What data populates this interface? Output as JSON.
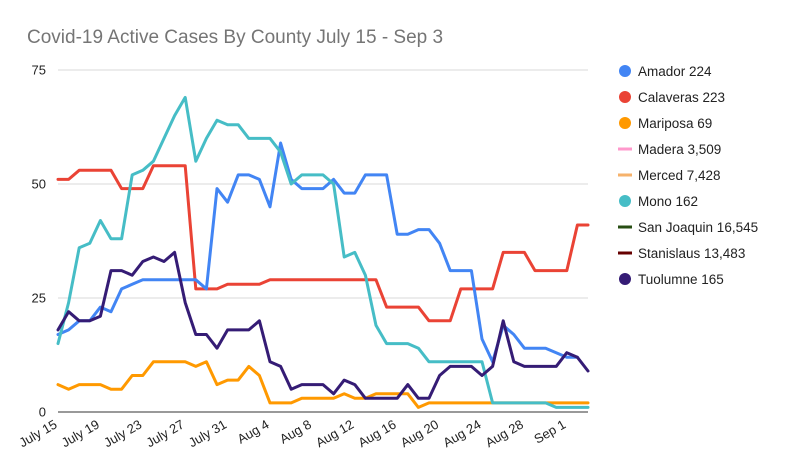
{
  "chart_data": {
    "type": "line",
    "title": "Covid-19 Active Cases By County July 15 - Sep 3",
    "xlabel": "",
    "ylabel": "",
    "ylim": [
      0,
      75
    ],
    "yticks": [
      "0",
      "25",
      "50",
      "75"
    ],
    "grid": true,
    "legend_position": "right",
    "x_tick_labels": [
      "July 15",
      "July 19",
      "July 23",
      "July 27",
      "July 31",
      "Aug 4",
      "Aug 8",
      "Aug 12",
      "Aug 16",
      "Aug 20",
      "Aug 24",
      "Aug 28",
      "Sep 1"
    ],
    "x_tick_indices": [
      0,
      4,
      8,
      12,
      16,
      20,
      24,
      28,
      32,
      36,
      40,
      44,
      48
    ],
    "series": [
      {
        "name": "Amador 224",
        "color": "#4285f4",
        "values": [
          17,
          18,
          20,
          20,
          23,
          22,
          27,
          28,
          29,
          29,
          29,
          29,
          29,
          29,
          27,
          49,
          46,
          52,
          52,
          51,
          45,
          59,
          51,
          49,
          49,
          49,
          51,
          48,
          48,
          52,
          52,
          52,
          39,
          39,
          40,
          40,
          37,
          31,
          31,
          31,
          16,
          11,
          19,
          17,
          14,
          14,
          14,
          13,
          12,
          12,
          null
        ]
      },
      {
        "name": "Calaveras 223",
        "color": "#ea4335",
        "values": [
          51,
          51,
          53,
          53,
          53,
          53,
          49,
          49,
          49,
          54,
          54,
          54,
          54,
          27,
          27,
          27,
          28,
          28,
          28,
          28,
          29,
          29,
          29,
          29,
          29,
          29,
          29,
          29,
          29,
          29,
          29,
          23,
          23,
          23,
          23,
          20,
          20,
          20,
          27,
          27,
          27,
          27,
          35,
          35,
          35,
          31,
          31,
          31,
          31,
          41,
          41
        ]
      },
      {
        "name": "Mariposa 69",
        "color": "#ff9900",
        "values": [
          6,
          5,
          6,
          6,
          6,
          5,
          5,
          8,
          8,
          11,
          11,
          11,
          11,
          10,
          11,
          6,
          7,
          7,
          10,
          8,
          2,
          2,
          2,
          3,
          3,
          3,
          3,
          4,
          3,
          3,
          4,
          4,
          4,
          4,
          1,
          2,
          2,
          2,
          2,
          2,
          2,
          2,
          2,
          2,
          2,
          2,
          2,
          2,
          2,
          2,
          2
        ]
      },
      {
        "name": "Madera 3,509",
        "color": "#ff99cc",
        "values": []
      },
      {
        "name": "Merced 7,428",
        "color": "#f6b26b",
        "values": []
      },
      {
        "name": "Mono 162",
        "color": "#46bdc6",
        "values": [
          15,
          24,
          36,
          37,
          42,
          38,
          38,
          52,
          53,
          55,
          60,
          65,
          69,
          55,
          60,
          64,
          63,
          63,
          60,
          60,
          60,
          57,
          50,
          52,
          52,
          52,
          50,
          34,
          35,
          30,
          19,
          15,
          15,
          15,
          14,
          11,
          11,
          11,
          11,
          11,
          11,
          2,
          2,
          2,
          2,
          2,
          2,
          1,
          1,
          1,
          1
        ]
      },
      {
        "name": "San Joaquin 16,545",
        "color": "#274e13",
        "values": []
      },
      {
        "name": "Stanislaus 13,483",
        "color": "#660000",
        "values": []
      },
      {
        "name": "Tuolumne 165",
        "color": "#351c75",
        "values": [
          18,
          22,
          20,
          20,
          21,
          31,
          31,
          30,
          33,
          34,
          33,
          35,
          24,
          17,
          17,
          14,
          18,
          18,
          18,
          20,
          11,
          10,
          5,
          6,
          6,
          6,
          4,
          7,
          6,
          3,
          3,
          3,
          3,
          6,
          3,
          3,
          8,
          10,
          10,
          10,
          8,
          10,
          20,
          11,
          10,
          10,
          10,
          10,
          13,
          12,
          9
        ]
      }
    ]
  }
}
